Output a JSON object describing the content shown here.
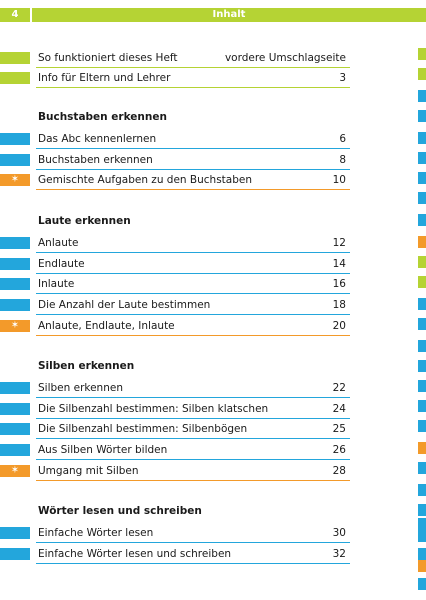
{
  "header": {
    "page_number": "4",
    "title": "Inhalt"
  },
  "colors": {
    "green": "#b5d334",
    "blue": "#23a6dc",
    "orange": "#f39a2a"
  },
  "intro": [
    {
      "label": "So funktioniert dieses Heft",
      "page": "vordere Umschlagseite",
      "color": "green"
    },
    {
      "label": "Info für Eltern und Lehrer",
      "page": "3",
      "color": "green"
    }
  ],
  "sections": [
    {
      "heading": "Buchstaben erkennen",
      "items": [
        {
          "label": "Das Abc kennenlernen",
          "page": "6",
          "color": "blue",
          "marker": ""
        },
        {
          "label": "Buchstaben erkennen",
          "page": "8",
          "color": "blue",
          "marker": ""
        },
        {
          "label": "Gemischte Aufgaben zu den Buchstaben",
          "page": "10",
          "color": "orange",
          "marker": "✶"
        }
      ]
    },
    {
      "heading": "Laute erkennen",
      "items": [
        {
          "label": "Anlaute",
          "page": "12",
          "color": "blue",
          "marker": ""
        },
        {
          "label": "Endlaute",
          "page": "14",
          "color": "blue",
          "marker": ""
        },
        {
          "label": "Inlaute",
          "page": "16",
          "color": "blue",
          "marker": ""
        },
        {
          "label": "Die Anzahl der Laute bestimmen",
          "page": "18",
          "color": "blue",
          "marker": ""
        },
        {
          "label": "Anlaute, Endlaute, Inlaute",
          "page": "20",
          "color": "orange",
          "marker": "✶"
        }
      ]
    },
    {
      "heading": "Silben erkennen",
      "items": [
        {
          "label": "Silben erkennen",
          "page": "22",
          "color": "blue",
          "marker": ""
        },
        {
          "label": "Die Silbenzahl bestimmen: Silben klatschen",
          "page": "24",
          "color": "blue",
          "marker": ""
        },
        {
          "label": "Die Silbenzahl bestimmen: Silbenbögen",
          "page": "25",
          "color": "blue",
          "marker": ""
        },
        {
          "label": "Aus Silben Wörter bilden",
          "page": "26",
          "color": "blue",
          "marker": ""
        },
        {
          "label": "Umgang mit Silben",
          "page": "28",
          "color": "orange",
          "marker": "✶"
        }
      ]
    },
    {
      "heading": "Wörter lesen und schreiben",
      "items": [
        {
          "label": "Einfache Wörter lesen",
          "page": "30",
          "color": "blue",
          "marker": ""
        },
        {
          "label": "Einfache Wörter lesen und schreiben",
          "page": "32",
          "color": "blue",
          "marker": ""
        }
      ]
    }
  ],
  "side_tabs": [
    "green",
    "green",
    "blue",
    "blue",
    "blue",
    "blue",
    "blue",
    "blue",
    "blue",
    "orange",
    "green",
    "green",
    "blue",
    "blue",
    "blue",
    "blue",
    "blue",
    "blue",
    "blue",
    "orange",
    "blue",
    "blue",
    "blue",
    "blue",
    "blue",
    "blue",
    "orange",
    "blue",
    "blue",
    "blue",
    "orange",
    "orange"
  ]
}
